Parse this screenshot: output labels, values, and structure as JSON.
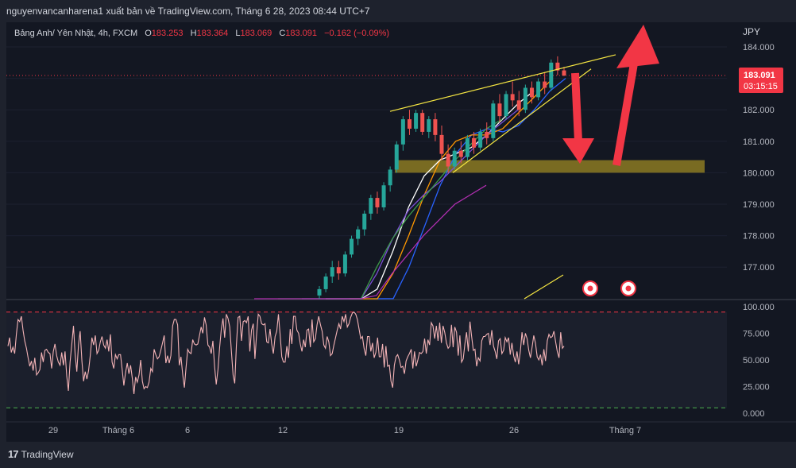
{
  "header": {
    "publish_line": "nguyenvancanharena1 xuất bản về TradingView.com, Tháng 6 28, 2023 08:44 UTC+7"
  },
  "legend": {
    "symbol": "Bảng Anh/ Yên Nhật, 4h, FXCM",
    "o_label": "O",
    "o_value": "183.253",
    "h_label": "H",
    "h_value": "183.364",
    "l_label": "L",
    "l_value": "183.069",
    "c_label": "C",
    "c_value": "183.091",
    "change": "−0.162 (−0.09%)"
  },
  "price_axis": {
    "currency": "JPY",
    "current_price": "183.091",
    "countdown": "03:15:15"
  },
  "footer": {
    "brand": "TradingView",
    "logo_mark": "17"
  },
  "colors": {
    "background": "#131722",
    "up_candle": "#26a69a",
    "down_candle": "#ef5350",
    "arrow": "#f23645",
    "zone": "#8c7a22",
    "trendline": "#f5e642",
    "rsi_line": "#f3b3b6",
    "rsi_upper": "#f23645",
    "rsi_lower": "#4caf50"
  },
  "chart_data": [
    {
      "type": "candlestick",
      "title": "Bảng Anh/ Yên Nhật, 4h, FXCM",
      "ylabel": "JPY",
      "y_ticks": [
        "184.000",
        "183.000",
        "182.000",
        "181.000",
        "180.000",
        "179.000",
        "178.000",
        "177.000"
      ],
      "ylim": [
        176.0,
        184.6
      ],
      "x_ticks": [
        "29",
        "Tháng 6",
        "6",
        "12",
        "19",
        "26",
        "Tháng 7"
      ],
      "last_price": 183.091,
      "ohlc_sample": [
        [
          176.1,
          176.4,
          175.9,
          176.3
        ],
        [
          176.3,
          176.8,
          176.2,
          176.7
        ],
        [
          176.7,
          177.2,
          176.5,
          177.0
        ],
        [
          177.0,
          177.2,
          176.6,
          176.8
        ],
        [
          176.8,
          177.5,
          176.7,
          177.4
        ],
        [
          177.4,
          178.0,
          177.3,
          177.9
        ],
        [
          177.9,
          178.3,
          177.7,
          178.2
        ],
        [
          178.2,
          178.8,
          178.0,
          178.7
        ],
        [
          178.7,
          179.3,
          178.5,
          179.2
        ],
        [
          179.2,
          179.4,
          178.7,
          178.9
        ],
        [
          178.9,
          179.7,
          178.8,
          179.6
        ],
        [
          179.6,
          180.2,
          179.4,
          180.1
        ],
        [
          180.1,
          181.0,
          180.0,
          180.9
        ],
        [
          180.9,
          181.8,
          180.7,
          181.7
        ],
        [
          181.7,
          182.0,
          181.2,
          181.4
        ],
        [
          181.4,
          182.0,
          181.3,
          181.9
        ],
        [
          181.9,
          182.0,
          181.2,
          181.3
        ],
        [
          181.3,
          181.8,
          181.1,
          181.7
        ],
        [
          181.7,
          181.9,
          181.0,
          181.2
        ],
        [
          181.2,
          181.5,
          180.4,
          180.6
        ],
        [
          180.6,
          180.9,
          180.0,
          180.2
        ],
        [
          180.2,
          180.8,
          180.1,
          180.7
        ],
        [
          180.7,
          181.0,
          180.3,
          180.5
        ],
        [
          180.5,
          181.2,
          180.4,
          181.1
        ],
        [
          181.1,
          181.3,
          180.6,
          180.8
        ],
        [
          180.8,
          181.4,
          180.7,
          181.3
        ],
        [
          181.3,
          181.6,
          180.9,
          181.1
        ],
        [
          181.1,
          182.3,
          181.0,
          182.2
        ],
        [
          182.2,
          182.5,
          181.6,
          181.8
        ],
        [
          181.8,
          182.6,
          181.7,
          182.5
        ],
        [
          182.5,
          182.9,
          182.1,
          182.3
        ],
        [
          182.3,
          182.6,
          181.8,
          182.0
        ],
        [
          182.0,
          182.8,
          181.9,
          182.7
        ],
        [
          182.7,
          182.9,
          182.2,
          182.4
        ],
        [
          182.4,
          183.0,
          182.3,
          182.9
        ],
        [
          182.9,
          183.2,
          182.5,
          182.7
        ],
        [
          182.7,
          183.6,
          182.6,
          183.5
        ],
        [
          183.5,
          183.7,
          183.1,
          183.25
        ],
        [
          183.253,
          183.364,
          183.069,
          183.091
        ]
      ],
      "moving_averages": [
        {
          "color": "#2962ff",
          "values": [
            176.0,
            177.0,
            178.3,
            179.6,
            180.6,
            181.2,
            181.4,
            181.3,
            181.5,
            182.0,
            182.6,
            183.0
          ]
        },
        {
          "color": "#ff9800",
          "values": [
            175.9,
            176.8,
            178.0,
            179.3,
            180.4,
            181.0,
            181.2,
            181.2,
            181.4,
            181.9,
            182.4,
            182.9
          ]
        },
        {
          "color": "#ffffff",
          "values": [
            175.5,
            176.3,
            177.5,
            178.9,
            179.9,
            180.4,
            180.6,
            180.8,
            181.2,
            181.7,
            182.2,
            182.6
          ]
        },
        {
          "color": "#7b4fd6",
          "values": [
            175.0,
            175.8,
            176.8,
            177.9,
            178.8,
            179.3,
            179.7,
            180.2,
            180.7,
            181.2,
            181.6,
            182.0
          ]
        },
        {
          "color": "#3d9a4a",
          "values": [
            174.0,
            174.8,
            175.9,
            177.0,
            177.9,
            178.6,
            179.2,
            179.8,
            180.4,
            180.9,
            181.4,
            181.7
          ]
        },
        {
          "color": "#b02fb0",
          "values": [
            172.5,
            173.2,
            174.2,
            175.3,
            176.1,
            176.8,
            177.4,
            178.0,
            178.5,
            179.0,
            179.3,
            179.6
          ]
        }
      ],
      "trendlines": [
        {
          "from": [
            181.95
          ],
          "to": [
            183.75
          ]
        },
        {
          "from": [
            180.0
          ],
          "to": [
            183.3
          ]
        }
      ],
      "zone": [
        180.0,
        180.4
      ],
      "arrows": [
        "down",
        "up"
      ]
    },
    {
      "type": "line",
      "title": "",
      "y_ticks": [
        "100.000",
        "75.000",
        "50.000",
        "25.000",
        "0.000"
      ],
      "ylim": [
        0,
        100
      ],
      "upper_band": 95,
      "lower_band": 5,
      "values": [
        63,
        71,
        57,
        62,
        56,
        74,
        88,
        86,
        91,
        78,
        68,
        61,
        52,
        44,
        49,
        40,
        52,
        36,
        38,
        41,
        57,
        48,
        59,
        60,
        57,
        56,
        42,
        58,
        65,
        54,
        48,
        45,
        57,
        45,
        58,
        35,
        21,
        48,
        65,
        82,
        55,
        39,
        64,
        77,
        49,
        30,
        39,
        32,
        40,
        54,
        71,
        64,
        73,
        56,
        59,
        67,
        72,
        64,
        61,
        69,
        58,
        74,
        48,
        42,
        55,
        51,
        55,
        55,
        41,
        26,
        38,
        47,
        37,
        45,
        33,
        18,
        34,
        29,
        36,
        50,
        30,
        23,
        25,
        24,
        29,
        42,
        39,
        60,
        55,
        51,
        53,
        59,
        66,
        73,
        47,
        54,
        47,
        54,
        82,
        88,
        88,
        83,
        45,
        53,
        37,
        24,
        43,
        60,
        57,
        56,
        69,
        65,
        64,
        65,
        73,
        81,
        75,
        90,
        83,
        64,
        62,
        56,
        68,
        44,
        27,
        41,
        62,
        79,
        89,
        71,
        93,
        89,
        81,
        58,
        36,
        28,
        64,
        90,
        91,
        68,
        86,
        87,
        85,
        91,
        58,
        78,
        84,
        51,
        74,
        93,
        91,
        84,
        83,
        84,
        67,
        66,
        79,
        65,
        56,
        72,
        77,
        93,
        74,
        53,
        48,
        48,
        63,
        52,
        79,
        65,
        91,
        91,
        78,
        75,
        65,
        58,
        69,
        62,
        78,
        79,
        62,
        88,
        67,
        70,
        83,
        91,
        83,
        77,
        64,
        61,
        72,
        67,
        54,
        56,
        64,
        71,
        78,
        84,
        79,
        91,
        86,
        93,
        81,
        84,
        90,
        94,
        95,
        93,
        88,
        79,
        70,
        72,
        61,
        54,
        72,
        72,
        58,
        66,
        52,
        57,
        71,
        53,
        53,
        65,
        43,
        63,
        44,
        45,
        30,
        24,
        45,
        53,
        55,
        50,
        43,
        44,
        37,
        49,
        53,
        56,
        60,
        42,
        58,
        44,
        50,
        57,
        56,
        58,
        70,
        56,
        69,
        64,
        85,
        82,
        70,
        82,
        68,
        85,
        66,
        82,
        76,
        66,
        61,
        63,
        83,
        62,
        81,
        76,
        54,
        73,
        48,
        51,
        65,
        76,
        58,
        86,
        72,
        59,
        60,
        44,
        52,
        49,
        68,
        72,
        72,
        74,
        75,
        64,
        78,
        63,
        58,
        51,
        68,
        70,
        56,
        59,
        71,
        67,
        71,
        55,
        66,
        54,
        48,
        58,
        46,
        58,
        76,
        64,
        75,
        70,
        59,
        52,
        62,
        73,
        66,
        53,
        50,
        55,
        45,
        60,
        49,
        68,
        74,
        71,
        72,
        77,
        67,
        58,
        52,
        76,
        61,
        63
      ]
    }
  ]
}
